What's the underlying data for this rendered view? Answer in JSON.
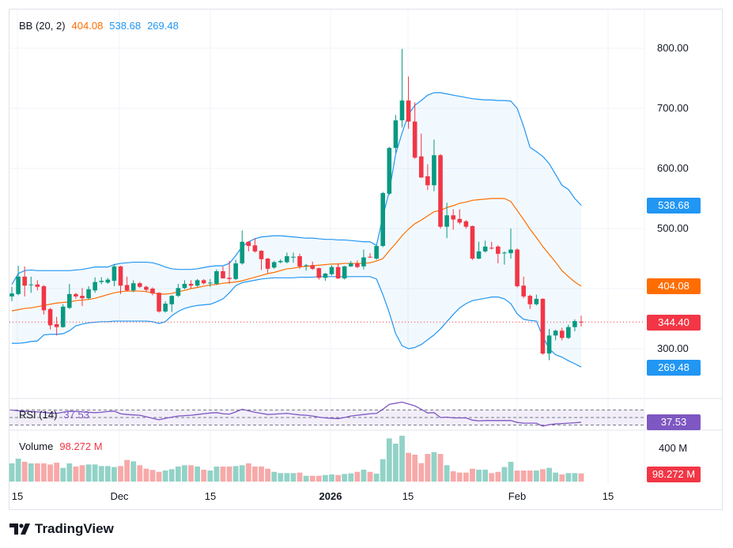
{
  "legend": {
    "bb_label": "BB (20, 2)",
    "bb_middle": "404.08",
    "bb_upper": "538.68",
    "bb_lower": "269.48",
    "rsi_label": "RSI (14)",
    "rsi_value": "37.53",
    "volume_label": "Volume",
    "volume_value": "98.272 M"
  },
  "price_axis": [
    "800.00",
    "700.00",
    "600.00",
    "500.00",
    "300.00"
  ],
  "price_tags": {
    "upper": "538.68",
    "middle": "404.08",
    "last": "344.40",
    "lower": "269.48"
  },
  "rsi_tag": "37.53",
  "volume_axis": "400 M",
  "volume_tag": "98.272 M",
  "time_axis": [
    "15",
    "Dec",
    "15",
    "2026",
    "15",
    "Feb",
    "15"
  ],
  "brand": "TradingView",
  "colors": {
    "up": "#089981",
    "down": "#f23645",
    "bb_band": "#2196f3",
    "bb_basis": "#ff6d00",
    "rsi": "#7e57c2"
  },
  "chart_data": {
    "type": "candlestick",
    "interval": "1D",
    "ohlc": [
      [
        387,
        403,
        379,
        392
      ],
      [
        391,
        438,
        389,
        420
      ],
      [
        420,
        437,
        387,
        405
      ],
      [
        406,
        420,
        393,
        407
      ],
      [
        407,
        414,
        397,
        403
      ],
      [
        404,
        406,
        357,
        364
      ],
      [
        366,
        368,
        332,
        339
      ],
      [
        341,
        353,
        322,
        336
      ],
      [
        336,
        374,
        335,
        370
      ],
      [
        368,
        408,
        366,
        391
      ],
      [
        391,
        393,
        383,
        387
      ],
      [
        388,
        401,
        371,
        384
      ],
      [
        384,
        404,
        382,
        399
      ],
      [
        397,
        419,
        393,
        411
      ],
      [
        411,
        419,
        407,
        413
      ],
      [
        410,
        418,
        408,
        415
      ],
      [
        413,
        441,
        404,
        437
      ],
      [
        437,
        438,
        391,
        405
      ],
      [
        406,
        420,
        395,
        397
      ],
      [
        397,
        414,
        394,
        409
      ],
      [
        409,
        411,
        401,
        403
      ],
      [
        403,
        405,
        395,
        398
      ],
      [
        400,
        402,
        389,
        392
      ],
      [
        393,
        394,
        360,
        362
      ],
      [
        362,
        379,
        360,
        375
      ],
      [
        374,
        389,
        361,
        388
      ],
      [
        388,
        408,
        386,
        401
      ],
      [
        401,
        414,
        399,
        408
      ],
      [
        408,
        414,
        400,
        405
      ],
      [
        405,
        416,
        403,
        414
      ],
      [
        414,
        416,
        407,
        409
      ],
      [
        409,
        416,
        403,
        410
      ],
      [
        408,
        432,
        406,
        429
      ],
      [
        429,
        437,
        417,
        417
      ],
      [
        418,
        446,
        408,
        416
      ],
      [
        416,
        448,
        414,
        442
      ],
      [
        442,
        497,
        440,
        478
      ],
      [
        478,
        479,
        462,
        471
      ],
      [
        472,
        484,
        460,
        462
      ],
      [
        463,
        464,
        431,
        449
      ],
      [
        450,
        451,
        426,
        433
      ],
      [
        435,
        446,
        433,
        444
      ],
      [
        444,
        449,
        442,
        446
      ],
      [
        444,
        460,
        442,
        454
      ],
      [
        453,
        460,
        443,
        453
      ],
      [
        454,
        458,
        433,
        437
      ],
      [
        438,
        441,
        430,
        439
      ],
      [
        439,
        445,
        431,
        433
      ],
      [
        434,
        435,
        415,
        418
      ],
      [
        418,
        426,
        413,
        425
      ],
      [
        424,
        439,
        422,
        436
      ],
      [
        436,
        442,
        416,
        417
      ],
      [
        417,
        438,
        415,
        437
      ],
      [
        437,
        446,
        436,
        442
      ],
      [
        442,
        447,
        434,
        436
      ],
      [
        437,
        465,
        432,
        452
      ],
      [
        453,
        459,
        451,
        452
      ],
      [
        450,
        472,
        448,
        471
      ],
      [
        471,
        561,
        469,
        559
      ],
      [
        558,
        636,
        556,
        634
      ],
      [
        634,
        689,
        626,
        680
      ],
      [
        680,
        799,
        668,
        713
      ],
      [
        713,
        753,
        666,
        678
      ],
      [
        678,
        710,
        616,
        618
      ],
      [
        620,
        658,
        584,
        585
      ],
      [
        587,
        607,
        564,
        572
      ],
      [
        572,
        648,
        562,
        622
      ],
      [
        622,
        624,
        500,
        503
      ],
      [
        503,
        543,
        484,
        522
      ],
      [
        522,
        532,
        498,
        515
      ],
      [
        516,
        532,
        507,
        510
      ],
      [
        512,
        514,
        500,
        503
      ],
      [
        504,
        505,
        448,
        450
      ],
      [
        450,
        478,
        449,
        462
      ],
      [
        462,
        480,
        460,
        470
      ],
      [
        468,
        478,
        465,
        467
      ],
      [
        470,
        472,
        442,
        458
      ],
      [
        459,
        462,
        440,
        460
      ],
      [
        459,
        500,
        450,
        465
      ],
      [
        465,
        467,
        402,
        404
      ],
      [
        405,
        420,
        384,
        387
      ],
      [
        388,
        390,
        366,
        374
      ],
      [
        374,
        390,
        372,
        383
      ],
      [
        383,
        384,
        290,
        292
      ],
      [
        292,
        333,
        281,
        322
      ],
      [
        322,
        332,
        314,
        330
      ],
      [
        330,
        335,
        314,
        318
      ],
      [
        318,
        340,
        316,
        336
      ],
      [
        336,
        349,
        329,
        346
      ],
      [
        345,
        355,
        337,
        344.4
      ]
    ],
    "bb_upper": [
      407,
      425,
      430,
      431,
      430,
      430,
      430,
      430,
      430,
      430,
      431,
      432,
      434,
      436,
      436,
      436,
      440,
      442,
      443,
      444,
      444,
      444,
      443,
      440,
      436,
      433,
      432,
      432,
      432,
      433,
      435,
      437,
      438,
      438,
      442,
      455,
      470,
      478,
      483,
      486,
      487,
      488,
      488,
      487,
      486,
      485,
      484,
      484,
      483,
      482,
      482,
      481,
      481,
      480,
      479,
      478,
      478,
      472,
      520,
      562,
      624,
      659,
      690,
      705,
      713,
      722,
      726,
      726,
      724,
      722,
      720,
      718,
      716,
      715,
      714,
      714,
      713,
      713,
      712,
      700,
      670,
      635,
      628,
      620,
      608,
      590,
      572,
      565,
      550,
      538.68
    ],
    "bb_basis": [
      363,
      365,
      367,
      368,
      370,
      372,
      374,
      376,
      377,
      378,
      380,
      381,
      382,
      384,
      387,
      390,
      393,
      395,
      396,
      396,
      396,
      395,
      393,
      391,
      391,
      392,
      395,
      397,
      400,
      402,
      404,
      406,
      407,
      409,
      410,
      411,
      413,
      416,
      419,
      422,
      425,
      427,
      430,
      433,
      434,
      436,
      437,
      438,
      439,
      440,
      441,
      441,
      442,
      442,
      442,
      442,
      443,
      446,
      450,
      463,
      475,
      488,
      499,
      508,
      514,
      521,
      528,
      530,
      535,
      538,
      542,
      544,
      547,
      548,
      549,
      550,
      550,
      550,
      545,
      530,
      515,
      499,
      485,
      470,
      457,
      444,
      430,
      420,
      411,
      404.08
    ],
    "bb_lower": [
      309,
      309,
      310,
      312,
      313,
      323,
      324,
      324,
      325,
      330,
      338,
      341,
      343,
      344,
      345,
      345,
      346,
      346,
      346,
      346,
      346,
      346,
      345,
      342,
      345,
      355,
      362,
      367,
      370,
      372,
      373,
      374,
      378,
      383,
      393,
      405,
      410,
      412,
      414,
      416,
      417,
      418,
      418,
      418,
      418,
      419,
      419,
      419,
      420,
      420,
      420,
      420,
      420,
      420,
      420,
      420,
      420,
      416,
      390,
      360,
      325,
      305,
      300,
      302,
      307,
      315,
      323,
      333,
      345,
      357,
      368,
      375,
      380,
      382,
      384,
      386,
      386,
      383,
      375,
      358,
      349,
      347,
      346,
      320,
      300,
      290,
      286,
      280,
      275,
      269.48
    ],
    "rsi": [
      70,
      68,
      67,
      66,
      65,
      64,
      62,
      61,
      64,
      67,
      66,
      65,
      64,
      63,
      64,
      66,
      67,
      60,
      58,
      57,
      56,
      52,
      48,
      44,
      48,
      51,
      54,
      55,
      56,
      58,
      60,
      62,
      63,
      60,
      59,
      65,
      72,
      68,
      64,
      61,
      58,
      59,
      60,
      61,
      59,
      57,
      56,
      54,
      51,
      49,
      48,
      47,
      50,
      54,
      56,
      58,
      60,
      61,
      72,
      85,
      88,
      91,
      86,
      81,
      72,
      62,
      63,
      50,
      51,
      49,
      49,
      49,
      43,
      41,
      42,
      42,
      42,
      42,
      42,
      37,
      35,
      35,
      35,
      27,
      31,
      33,
      34,
      35,
      36,
      37.53
    ],
    "rsi_levels": [
      70,
      50,
      30
    ],
    "volume_millions": [
      219,
      276,
      238,
      219,
      219,
      219,
      206,
      228,
      165,
      219,
      181,
      197,
      206,
      206,
      187,
      187,
      175,
      187,
      260,
      244,
      197,
      155,
      140,
      117,
      133,
      149,
      181,
      197,
      197,
      181,
      143,
      133,
      181,
      181,
      181,
      187,
      197,
      219,
      181,
      181,
      155,
      117,
      102,
      102,
      102,
      108,
      70,
      70,
      70,
      79,
      86,
      79,
      92,
      98,
      117,
      143,
      117,
      95,
      270,
      520,
      457,
      552,
      346,
      324,
      222,
      333,
      355,
      333,
      197,
      124,
      108,
      108,
      155,
      143,
      143,
      102,
      117,
      175,
      238,
      133,
      133,
      133,
      133,
      149,
      165,
      108,
      86,
      102,
      102,
      98.272
    ],
    "last_price": 344.4,
    "price_ylim": [
      270,
      800
    ],
    "grid": true
  }
}
